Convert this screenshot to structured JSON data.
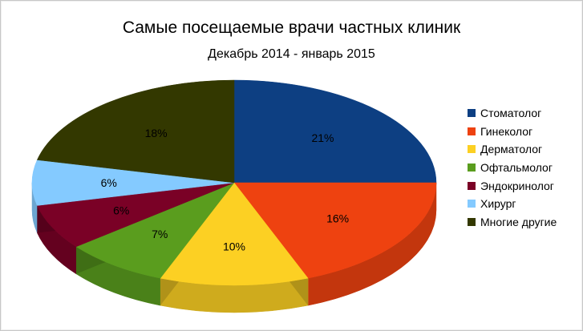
{
  "chart_data": {
    "type": "pie",
    "title": "Самые посещаемые врачи частных клиник",
    "subtitle": "Декабрь 2014 - январь 2015",
    "legend_position": "right",
    "style": "3d",
    "slices": [
      {
        "label": "Стоматолог",
        "value": 21,
        "display": "21%",
        "color": "#0d3f82"
      },
      {
        "label": "Гинеколог",
        "value": 16,
        "display": "16%",
        "color": "#ee4210"
      },
      {
        "label": "Дерматолог",
        "value": 10,
        "display": "10%",
        "color": "#fcd023"
      },
      {
        "label": "Офтальмолог",
        "value": 7,
        "display": "7%",
        "color": "#5a9d1e"
      },
      {
        "label": "Эндокринолог",
        "value": 6,
        "display": "6%",
        "color": "#7a0126"
      },
      {
        "label": "Хирург",
        "value": 6,
        "display": "6%",
        "color": "#84caff"
      },
      {
        "label": "Многие другие",
        "value": 18,
        "display": "18%",
        "color": "#333800"
      }
    ]
  }
}
